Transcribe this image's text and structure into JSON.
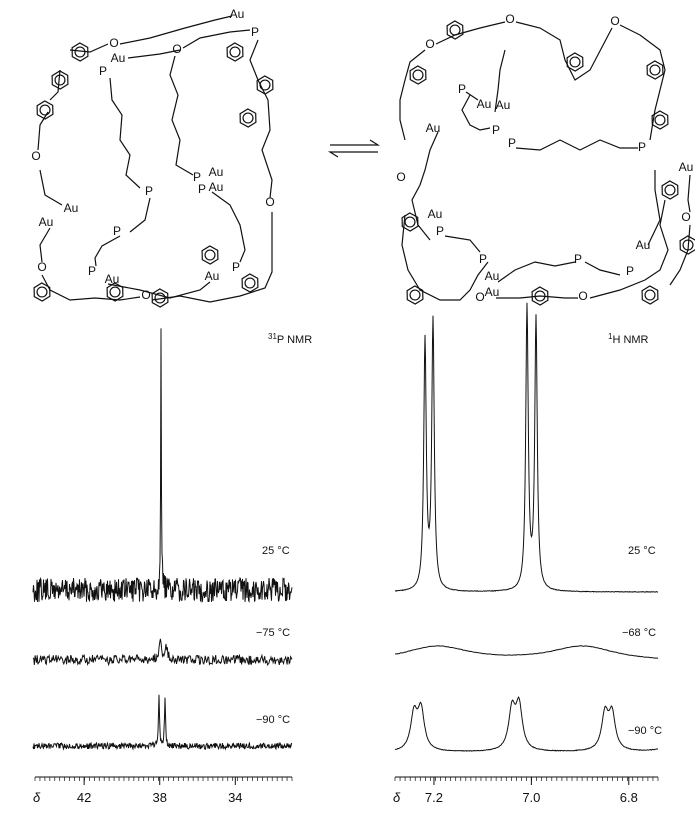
{
  "structures": {
    "left_atoms": [
      "Au",
      "P",
      "O",
      "O",
      "Au",
      "P",
      "P",
      "Au",
      "Au",
      "P",
      "P",
      "Au",
      "P",
      "Au",
      "O",
      "O",
      "O",
      "P",
      "Au",
      "Au",
      "P",
      "O"
    ],
    "right_atoms": [
      "O",
      "O",
      "P",
      "Au",
      "Au",
      "P",
      "P",
      "Au",
      "P",
      "Au",
      "O",
      "O",
      "Au",
      "P",
      "P",
      "Au",
      "Au",
      "P",
      "P",
      "Au",
      "O",
      "O",
      "O"
    ]
  },
  "spectra": {
    "p_nmr": {
      "sup": "31",
      "text": "P NMR",
      "temps": [
        "25 °C",
        "−75 °C",
        "−90 °C"
      ],
      "axis": {
        "symbol": "δ",
        "xlim": [
          44.6,
          31.0
        ],
        "ticks": [
          42,
          38,
          34
        ]
      }
    },
    "h_nmr": {
      "sup": "1",
      "text": "H NMR",
      "temps": [
        "25 °C",
        "−68 °C",
        "−90 °C"
      ],
      "axis": {
        "symbol": "δ",
        "xlim": [
          7.28,
          6.74
        ],
        "ticks": [
          7.2,
          {
            "value": 7.0,
            "label": "7.0"
          },
          6.8
        ]
      }
    }
  }
}
